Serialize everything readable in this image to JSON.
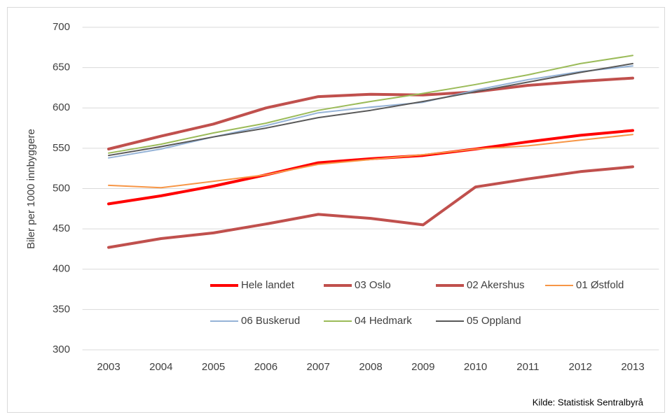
{
  "chart_data": {
    "type": "line",
    "y_label": "Biler per 1000 innbyggere",
    "source": "Kilde: Statistisk Sentralbyrå",
    "categories": [
      "2003",
      "2004",
      "2005",
      "2006",
      "2007",
      "2008",
      "2009",
      "2010",
      "2011",
      "2012",
      "2013"
    ],
    "ylim": [
      300,
      700
    ],
    "yticks": [
      300,
      350,
      400,
      450,
      500,
      550,
      600,
      650,
      700
    ],
    "grid": true,
    "series": [
      {
        "name": "Hele landet",
        "color": "#ff0000",
        "values": [
          481,
          491,
          503,
          517,
          532,
          537,
          541,
          549,
          558,
          566,
          572
        ]
      },
      {
        "name": "03 Oslo",
        "color": "#c0504d",
        "values": [
          427,
          438,
          445,
          456,
          468,
          463,
          455,
          502,
          512,
          521,
          527
        ]
      },
      {
        "name": "02 Akershus",
        "color": "#c0504d",
        "values": [
          549,
          565,
          580,
          600,
          614,
          617,
          616,
          620,
          628,
          633,
          637
        ]
      },
      {
        "name": "01 Østfold",
        "color": "#f79646",
        "values": [
          504,
          501,
          509,
          517,
          530,
          536,
          542,
          549,
          553,
          560,
          567
        ]
      },
      {
        "name": "06 Buskerud",
        "color": "#95b3d7",
        "values": [
          538,
          549,
          564,
          578,
          594,
          601,
          607,
          622,
          635,
          645,
          652
        ]
      },
      {
        "name": "04 Hedmark",
        "color": "#9bbb59",
        "values": [
          544,
          555,
          569,
          581,
          597,
          608,
          618,
          629,
          641,
          655,
          665
        ]
      },
      {
        "name": "05 Oppland",
        "color": "#595959",
        "values": [
          541,
          552,
          564,
          575,
          588,
          597,
          608,
          620,
          632,
          644,
          655
        ]
      }
    ]
  }
}
